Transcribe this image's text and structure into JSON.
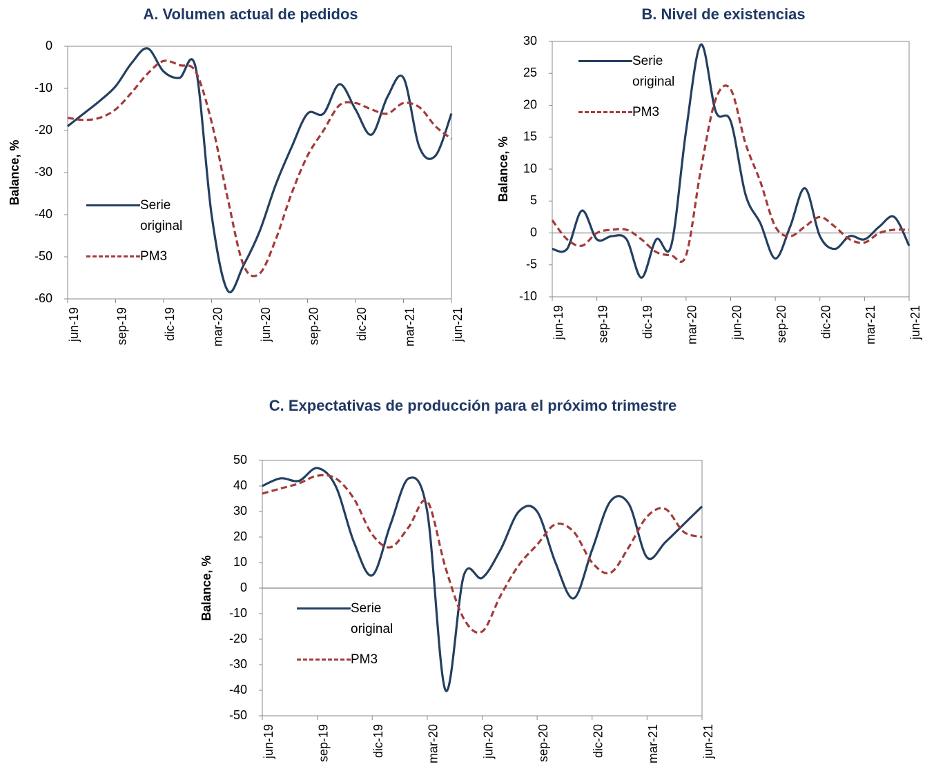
{
  "chart_data": [
    {
      "type": "line",
      "title": "A.  Volumen actual de pedidos",
      "y_label": "Balance, %",
      "categories": [
        "jun-19",
        null,
        null,
        "sep-19",
        null,
        null,
        "dic-19",
        null,
        null,
        "mar-20",
        null,
        null,
        "jun-20",
        null,
        null,
        "sep-20",
        null,
        null,
        "dic-20",
        null,
        null,
        "mar-21",
        null,
        null,
        "jun-21"
      ],
      "ylim": [
        -60,
        0
      ],
      "yticks": [
        -60,
        -50,
        -40,
        -30,
        -20,
        -10,
        0
      ],
      "series": [
        {
          "name": "Serie original",
          "color": "#243f60",
          "dash": "solid",
          "values": [
            -19,
            -16,
            -13,
            -9.5,
            -4,
            -0.5,
            -6,
            -7.5,
            -5,
            -40,
            -58,
            -52,
            -44,
            -33,
            -24,
            -16,
            -16,
            -9,
            -15,
            -21,
            -12,
            -7.5,
            -24,
            -26,
            -16
          ]
        },
        {
          "name": "PM3",
          "color": "#a33b3b",
          "dash": "dashed",
          "values": [
            -17,
            -17.5,
            -17,
            -15,
            -11,
            -6.5,
            -3.5,
            -4.5,
            -6,
            -18,
            -36,
            -52,
            -54,
            -46,
            -35,
            -26,
            -20,
            -14,
            -13.5,
            -15,
            -16,
            -13.5,
            -14.5,
            -19,
            -22
          ]
        }
      ]
    },
    {
      "type": "line",
      "title": "B.  Nivel de existencias",
      "y_label": "Balance, %",
      "categories": [
        "jun-19",
        null,
        null,
        "sep-19",
        null,
        null,
        "dic-19",
        null,
        null,
        "mar-20",
        null,
        null,
        "jun-20",
        null,
        null,
        "sep-20",
        null,
        null,
        "dic-20",
        null,
        null,
        "mar-21",
        null,
        null,
        "jun-21"
      ],
      "ylim": [
        -10,
        30
      ],
      "yticks": [
        -10,
        -5,
        0,
        5,
        10,
        15,
        20,
        25,
        30
      ],
      "series": [
        {
          "name": "Serie original",
          "color": "#243f60",
          "dash": "solid",
          "values": [
            -2.5,
            -2.5,
            3.5,
            -1,
            -0.5,
            -1,
            -7,
            -1,
            -2,
            16,
            29.5,
            19,
            17.5,
            6,
            1.5,
            -4,
            1,
            7,
            -0.5,
            -2.5,
            -0.5,
            -1,
            1,
            2.5,
            -2
          ]
        },
        {
          "name": "PM3",
          "color": "#a33b3b",
          "dash": "dashed",
          "values": [
            2,
            -1,
            -2,
            0,
            0.5,
            0.5,
            -1,
            -3,
            -3.5,
            -3.5,
            10,
            21,
            22.5,
            14,
            8,
            1,
            -0.5,
            1,
            2.5,
            1,
            -1,
            -1.5,
            0,
            0.5,
            0.5
          ]
        }
      ]
    },
    {
      "type": "line",
      "title": "C.  Expectativas de producción para el próximo trimestre",
      "y_label": "Balance, %",
      "categories": [
        "jun-19",
        null,
        null,
        "sep-19",
        null,
        null,
        "dic-19",
        null,
        null,
        "mar-20",
        null,
        null,
        "jun-20",
        null,
        null,
        "sep-20",
        null,
        null,
        "dic-20",
        null,
        null,
        "mar-21",
        null,
        null,
        "jun-21"
      ],
      "ylim": [
        -50,
        50
      ],
      "yticks": [
        -50,
        -40,
        -30,
        -20,
        -10,
        0,
        10,
        20,
        30,
        40,
        50
      ],
      "series": [
        {
          "name": "Serie original",
          "color": "#243f60",
          "dash": "solid",
          "values": [
            40,
            43,
            42,
            47,
            40,
            18,
            5,
            25,
            43,
            30,
            -40,
            5,
            4,
            15,
            30,
            30,
            10,
            -4,
            15,
            34,
            33,
            12,
            18,
            25,
            32
          ]
        },
        {
          "name": "PM3",
          "color": "#a33b3b",
          "dash": "dashed",
          "values": [
            37,
            39,
            41,
            44,
            43,
            35,
            21,
            16,
            24,
            34,
            8,
            -12,
            -17,
            -3,
            9,
            17,
            25,
            22,
            10,
            6,
            16,
            28,
            31,
            22,
            20
          ]
        }
      ]
    }
  ]
}
